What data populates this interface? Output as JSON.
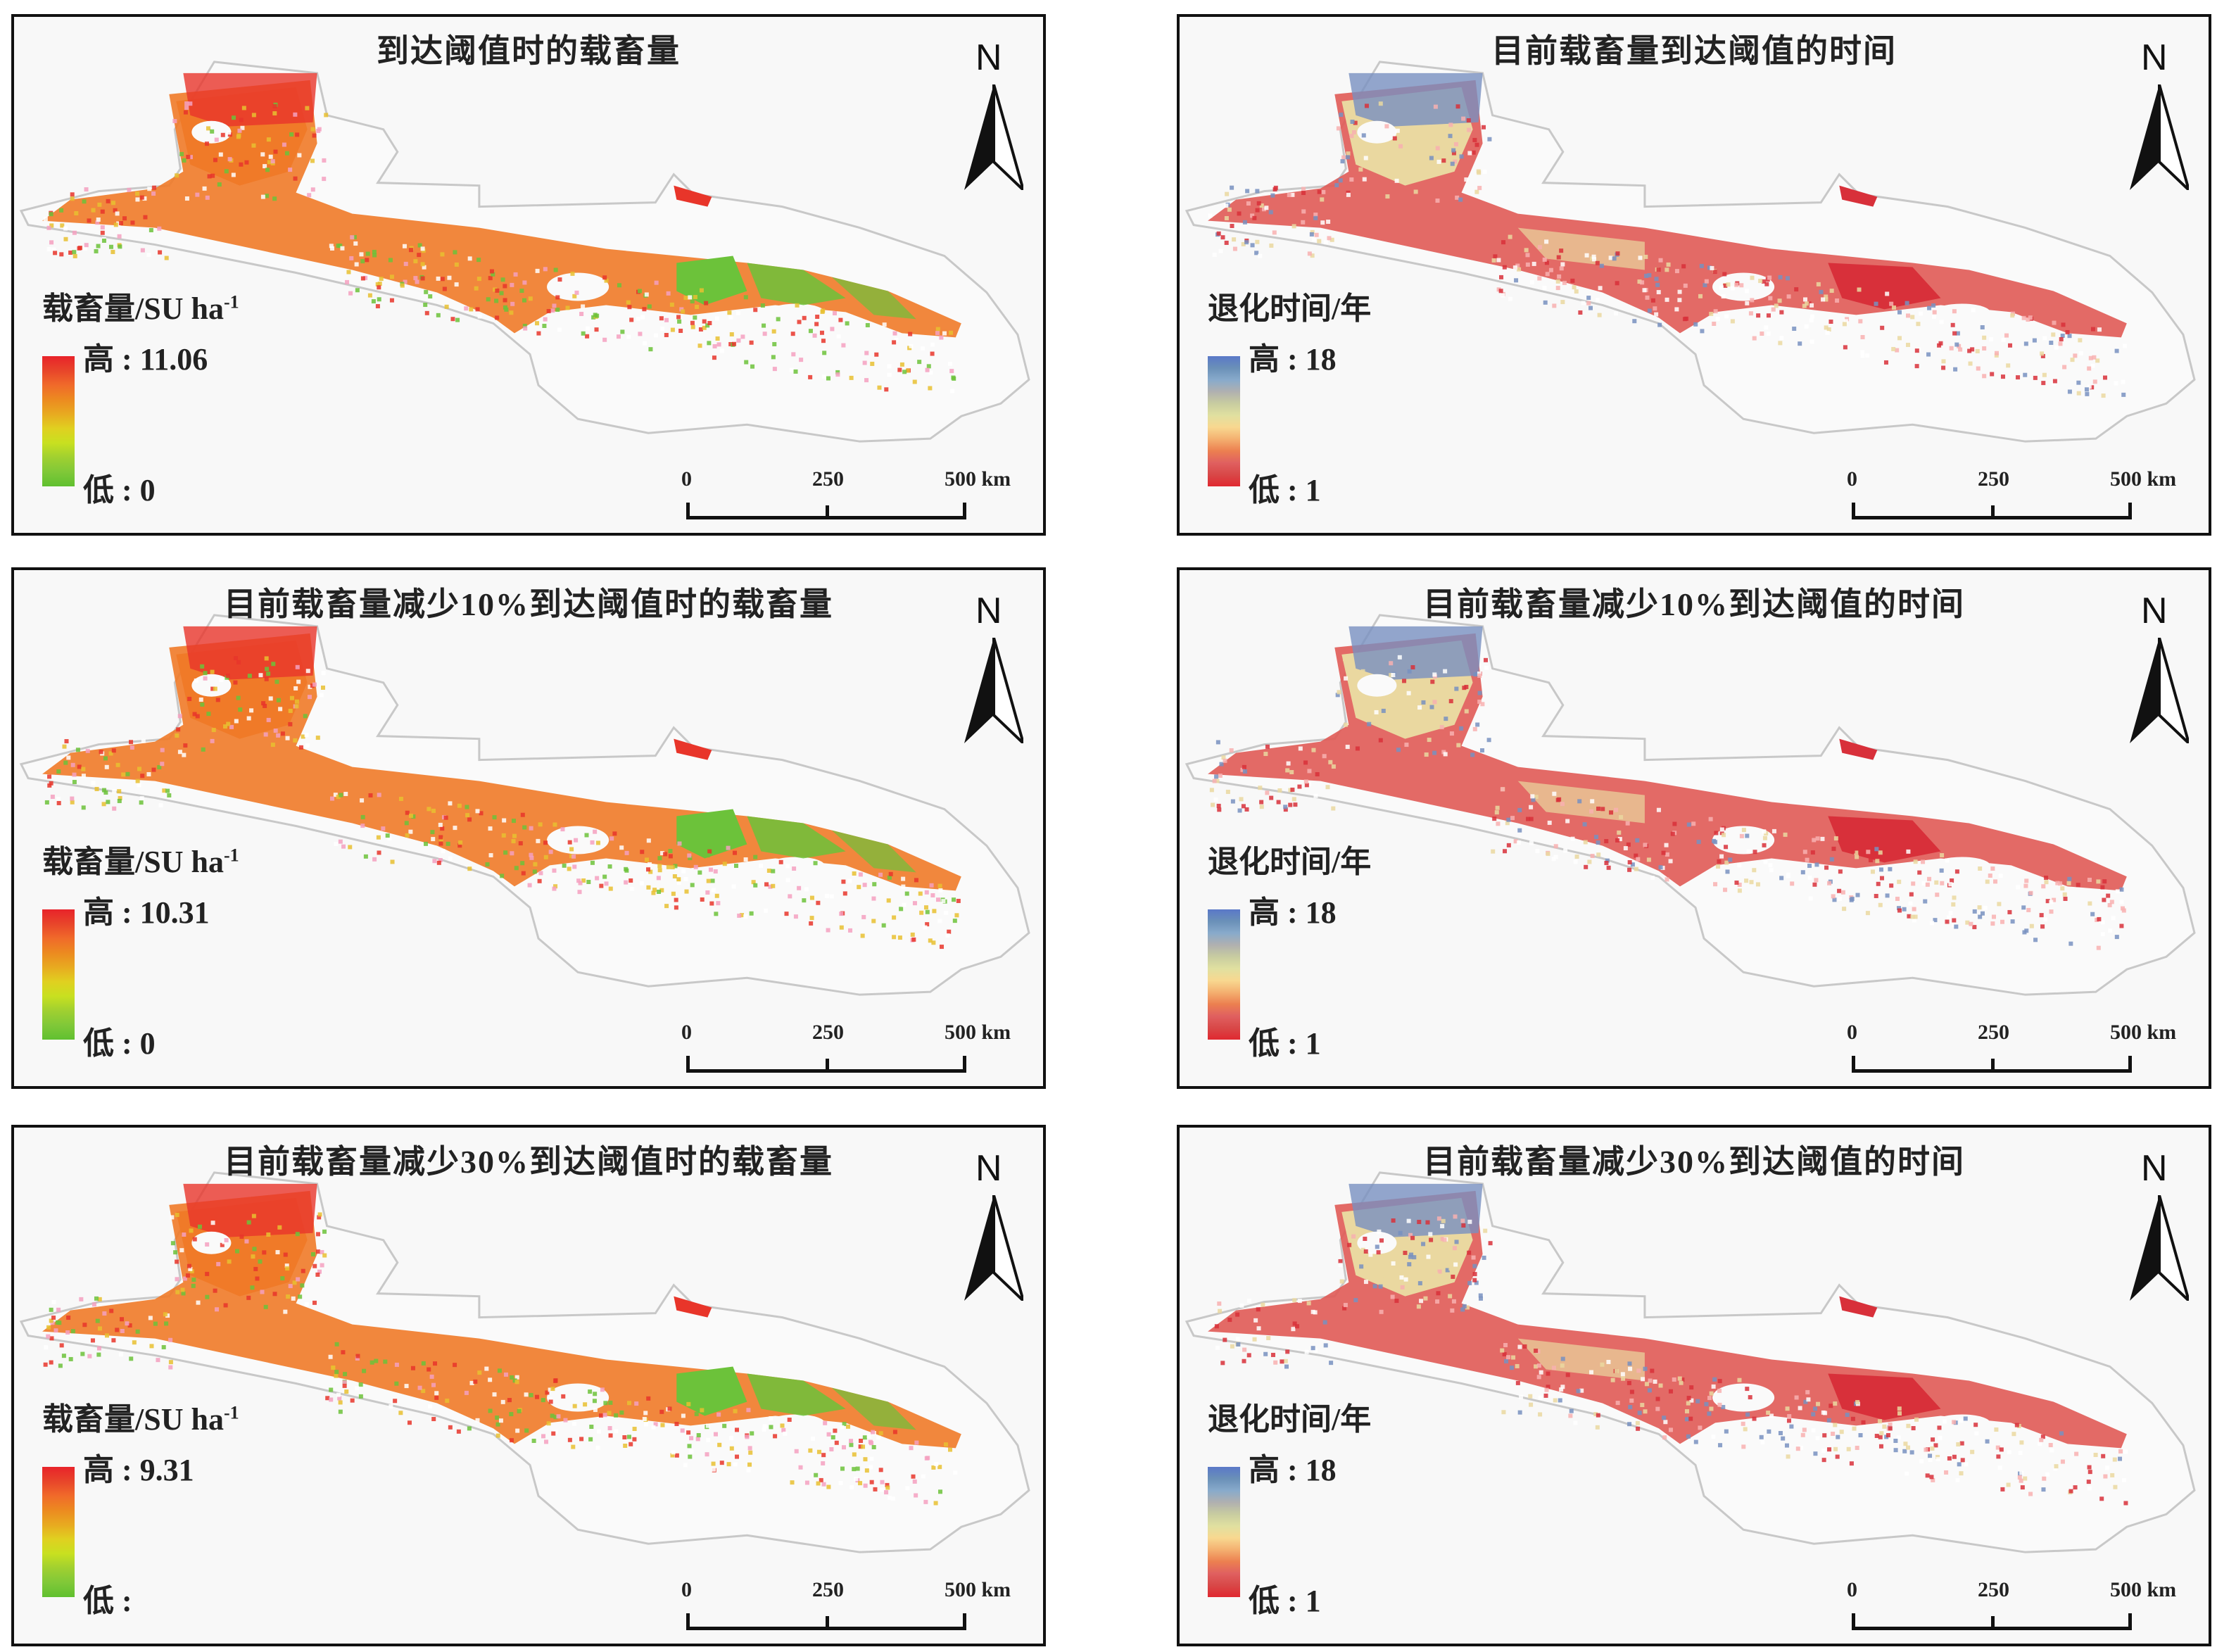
{
  "colors": {
    "stock_ramp": [
      "#e8232a",
      "#e8452a",
      "#f06a2a",
      "#ec8a20",
      "#e8aa20",
      "#e0d020",
      "#c8e020",
      "#a0d030",
      "#80c838",
      "#60c030"
    ],
    "time_ramp": [
      "#5a78c8",
      "#6a90b8",
      "#88aacb",
      "#b0b0b0",
      "#c8ccA0",
      "#e0e0a0",
      "#f8d890",
      "#f4b070",
      "#ec8050",
      "#e06060",
      "#d84848",
      "#e02830"
    ],
    "stock_fill": {
      "main": "#f07a28",
      "high": "#e8352a",
      "low": "#6cc23a",
      "mid": "#e8c030"
    },
    "time_fill": {
      "main": "#e05a55",
      "high": "#d8303a",
      "mid": "#ead8a0",
      "blue": "#7890c0"
    }
  },
  "panels": [
    {
      "type": "stock",
      "title": "到达阈值时的载畜量",
      "north": "N",
      "legend_title": "载畜量/SU ha",
      "legend_sup": "-1",
      "high": "高 : 11.06",
      "low": "低 : 0",
      "scale": [
        "0",
        "250",
        "500 km"
      ]
    },
    {
      "type": "time",
      "title": "目前载畜量到达阈值的时间",
      "north": "N",
      "legend_title": "退化时间/年",
      "legend_sup": "",
      "high": "高 : 18",
      "low": "低 : 1",
      "scale": [
        "0",
        "250",
        "500 km"
      ]
    },
    {
      "type": "stock",
      "title": "目前载畜量减少10%到达阈值时的载畜量",
      "north": "N",
      "legend_title": "载畜量/SU ha",
      "legend_sup": "-1",
      "high": "高 : 10.31",
      "low": "低 : 0",
      "scale": [
        "0",
        "250",
        "500 km"
      ]
    },
    {
      "type": "time",
      "title": "目前载畜量减少10%到达阈值的时间",
      "north": "N",
      "legend_title": "退化时间/年",
      "legend_sup": "",
      "high": "高 : 18",
      "low": "低 : 1",
      "scale": [
        "0",
        "250",
        "500 km"
      ]
    },
    {
      "type": "stock",
      "title": "目前载畜量减少30%到达阈值时的载畜量",
      "north": "N",
      "legend_title": "载畜量/SU ha",
      "legend_sup": "-1",
      "high": "高 : 9.31",
      "low": "低 :",
      "scale": [
        "0",
        "250",
        "500 km"
      ]
    },
    {
      "type": "time",
      "title": "目前载畜量减少30%到达阈值的时间",
      "north": "N",
      "legend_title": "退化时间/年",
      "legend_sup": "",
      "high": "高 : 18",
      "low": "低 : 1",
      "scale": [
        "0",
        "250",
        "500 km"
      ]
    }
  ]
}
